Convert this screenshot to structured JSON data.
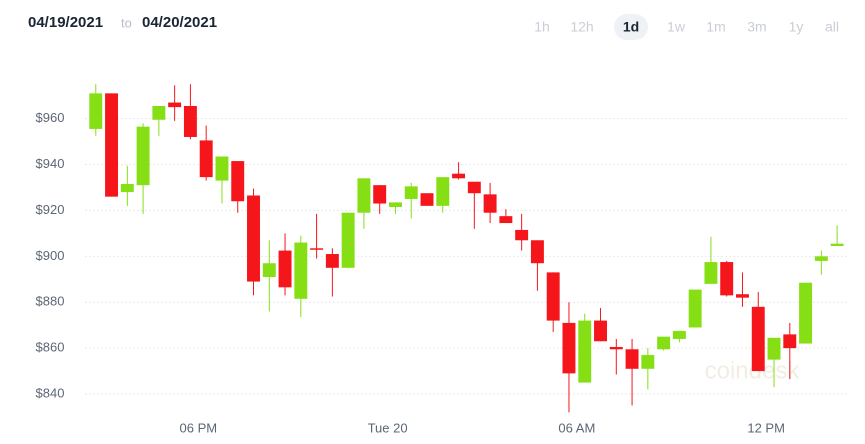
{
  "header": {
    "from": "04/19/2021",
    "to_word": "to",
    "to": "04/20/2021",
    "ranges": [
      "1h",
      "12h",
      "1d",
      "1w",
      "1m",
      "3m",
      "1y",
      "all"
    ],
    "selected_range": "1d"
  },
  "watermark": "coindesk",
  "chart_data": {
    "type": "candlestick",
    "x": [
      14.75,
      15.25,
      15.75,
      16.25,
      16.75,
      17.25,
      17.75,
      18.25,
      18.75,
      19.25,
      19.75,
      20.25,
      20.75,
      21.25,
      21.75,
      22.25,
      22.75,
      23.25,
      23.75,
      24.25,
      24.75,
      25.25,
      25.75,
      26.25,
      26.75,
      27.25,
      27.75,
      28.25,
      28.75,
      29.25,
      29.75,
      30.25,
      30.75,
      31.25,
      31.75,
      32.25,
      32.75,
      33.25,
      33.75,
      34.25,
      34.75,
      35.25,
      35.75,
      36.25,
      36.75,
      37.25,
      37.75,
      38.25
    ],
    "open": [
      955.5,
      971,
      928,
      931,
      959.5,
      967,
      965.5,
      950.5,
      933,
      941.5,
      926.5,
      891,
      902.5,
      881.5,
      903.5,
      901,
      895,
      919,
      931,
      921.5,
      925,
      927.5,
      922,
      936,
      932.5,
      927,
      917.5,
      911.5,
      907,
      893,
      871,
      845,
      872,
      860.5,
      859.5,
      851,
      859.5,
      864,
      869,
      888,
      897.5,
      883.5,
      878,
      855,
      866,
      862,
      898,
      904.5
    ],
    "high": [
      975,
      971,
      939.5,
      958,
      965.5,
      974.5,
      975,
      957,
      943.5,
      941.5,
      929.5,
      907,
      910,
      909,
      918.5,
      903.5,
      919,
      934,
      931,
      923.5,
      932,
      927.5,
      934.5,
      941,
      932.5,
      932,
      920.5,
      918.5,
      907,
      893,
      880,
      875,
      877.5,
      864,
      864,
      860,
      864.5,
      867.5,
      885.5,
      908.5,
      898,
      893,
      884.5,
      864.5,
      871,
      888.5,
      902.5,
      913.5
    ],
    "low": [
      952.5,
      926,
      922,
      918.5,
      952.5,
      959,
      951,
      933,
      923,
      919,
      883,
      876,
      883,
      873.5,
      899,
      882.5,
      895,
      912,
      918.5,
      918.5,
      916.5,
      922,
      919,
      933.5,
      912,
      914.5,
      914.5,
      902.5,
      885,
      867,
      832,
      845,
      863,
      848.5,
      835,
      842,
      859,
      862.5,
      869,
      888,
      882.5,
      878,
      850,
      843,
      846.5,
      862,
      892,
      904.5
    ],
    "close": [
      971,
      926,
      931.5,
      956.5,
      965.5,
      965,
      952,
      934.5,
      943.5,
      924,
      889,
      897,
      886.5,
      906,
      903,
      895,
      919,
      934,
      923,
      923.5,
      930.5,
      922,
      934.5,
      934,
      927.5,
      919,
      914.5,
      907,
      897,
      872,
      849,
      872,
      863,
      859.5,
      851,
      857,
      865,
      867.5,
      885.5,
      897.5,
      883,
      882,
      850,
      864.5,
      860,
      888.5,
      900,
      905.5
    ],
    "up_color": "#86df14",
    "down_color": "#f5161b",
    "xlim": [
      14.25,
      38.5
    ],
    "xticks": [
      {
        "value": 18,
        "label": "06 PM"
      },
      {
        "value": 24,
        "label": "Tue 20"
      },
      {
        "value": 30,
        "label": "06 AM"
      },
      {
        "value": 36,
        "label": "12 PM"
      }
    ],
    "ylim": [
      830,
      979
    ],
    "yticks": [
      {
        "value": 840,
        "label": "$840"
      },
      {
        "value": 860,
        "label": "$860"
      },
      {
        "value": 880,
        "label": "$880"
      },
      {
        "value": 900,
        "label": "$900"
      },
      {
        "value": 920,
        "label": "$920"
      },
      {
        "value": 940,
        "label": "$940"
      },
      {
        "value": 960,
        "label": "$960"
      }
    ],
    "grid": true
  }
}
